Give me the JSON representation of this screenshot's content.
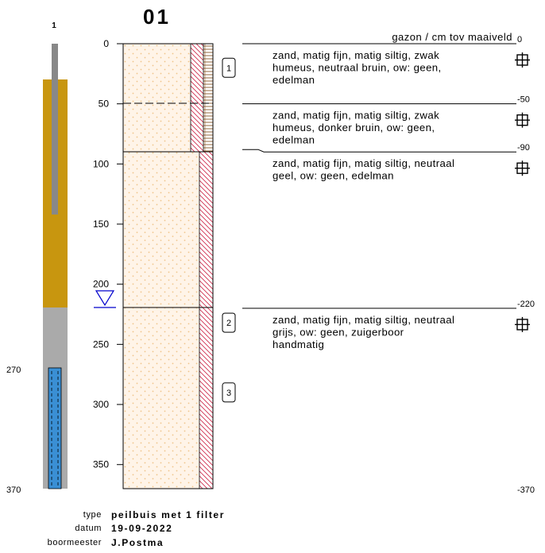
{
  "title": "01",
  "pipe": {
    "label": "1",
    "depth_filter_top": "270",
    "depth_bottom": "370",
    "filter_top_cm": 270,
    "filter_bottom_cm": 370,
    "clay_top_cm": 30,
    "clay_bottom_cm": 220
  },
  "axis": {
    "ticks": [
      0,
      50,
      100,
      150,
      200,
      250,
      300,
      350
    ],
    "range_cm": [
      0,
      370
    ]
  },
  "groundwater": {
    "depth_cm": 220
  },
  "samples": [
    {
      "label": "1",
      "depth_cm": 20
    },
    {
      "label": "2",
      "depth_cm": 232
    },
    {
      "label": "3",
      "depth_cm": 290
    }
  ],
  "layers": [
    {
      "top_cm": 0,
      "depth_label": "0",
      "description": [
        "zand, matig fijn, matig siltig, zwak",
        "humeus, neutraal bruin, ow: geen,",
        "edelman"
      ]
    },
    {
      "top_cm": 50,
      "depth_label": "-50",
      "description": [
        "zand, matig fijn, matig siltig, zwak",
        "humeus, donker bruin, ow: geen,",
        "edelman"
      ]
    },
    {
      "top_cm": 90,
      "depth_label": "-90",
      "description": [
        "zand, matig fijn, matig siltig, neutraal",
        "geel, ow: geen, edelman"
      ]
    },
    {
      "top_cm": 220,
      "depth_label": "-220",
      "description": [
        "zand, matig fijn, matig siltig, neutraal",
        "grijs, ow: geen, zuigerboor",
        "handmatig"
      ]
    }
  ],
  "header_text": "gazon / cm tov maaiveld",
  "bottom_depth_label": "-370",
  "meta": {
    "type_label": "type",
    "type_value": "peilbuis met 1 filter",
    "date_label": "datum",
    "date_value": "19-09-2022",
    "driller_label": "boormeester",
    "driller_value": "J.Postma"
  },
  "colors": {
    "clay": "#c8960f",
    "pipe_grey": "#888888",
    "filter_blue": "#3a8fd4",
    "sand_fill": "#fff4e8",
    "sand_dots": "#f0c48a",
    "hatch_red": "#d03050",
    "hatch_brown": "#8b5a2b",
    "water_blue": "#0000cc"
  }
}
